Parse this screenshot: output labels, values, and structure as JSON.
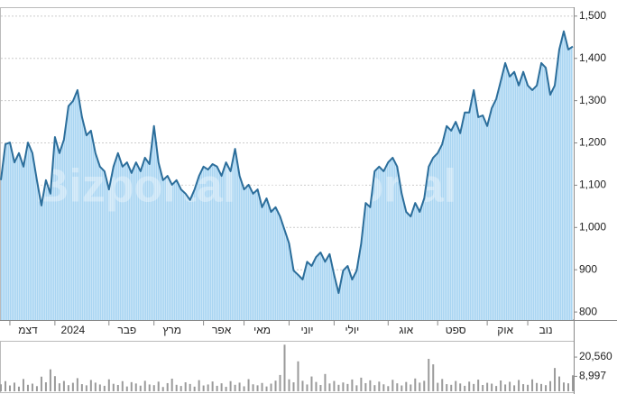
{
  "chart_data": {
    "type": "area",
    "watermark": "Bizportal",
    "line_color": "#2c6e9b",
    "fill_color": "#a9d5f2",
    "volume_color": "#9a9a9a",
    "grid": true,
    "categories": [
      null,
      null,
      null,
      null,
      null,
      null,
      "דצמ",
      null,
      null,
      null,
      null,
      null,
      null,
      null,
      null,
      null,
      "2024",
      null,
      null,
      null,
      null,
      null,
      null,
      null,
      null,
      null,
      null,
      null,
      "פבר",
      null,
      null,
      null,
      null,
      null,
      null,
      null,
      null,
      null,
      "מרץ",
      null,
      null,
      null,
      null,
      null,
      null,
      null,
      null,
      null,
      null,
      "אפר",
      null,
      null,
      null,
      null,
      null,
      null,
      null,
      null,
      "מאי",
      null,
      null,
      null,
      null,
      null,
      null,
      null,
      null,
      null,
      "יוני",
      null,
      null,
      null,
      null,
      null,
      null,
      null,
      null,
      null,
      "יולי",
      null,
      null,
      null,
      null,
      null,
      null,
      null,
      null,
      null,
      null,
      null,
      "אוג",
      null,
      null,
      null,
      null,
      null,
      null,
      null,
      null,
      null,
      null,
      "ספט",
      null,
      null,
      null,
      null,
      null,
      null,
      null,
      null,
      null,
      null,
      "אוק",
      null,
      null,
      null,
      null,
      null,
      null,
      null,
      null,
      "נוב",
      null,
      null,
      null,
      null,
      null,
      null
    ],
    "values": [
      1112,
      1197,
      1201,
      1154,
      1176,
      1144,
      1201,
      1176,
      1112,
      1052,
      1112,
      1080,
      1214,
      1176,
      1208,
      1287,
      1299,
      1325,
      1261,
      1218,
      1229,
      1176,
      1144,
      1133,
      1090,
      1144,
      1176,
      1144,
      1154,
      1129,
      1154,
      1133,
      1165,
      1150,
      1240,
      1154,
      1112,
      1122,
      1101,
      1112,
      1090,
      1080,
      1065,
      1090,
      1122,
      1144,
      1137,
      1150,
      1144,
      1122,
      1154,
      1133,
      1186,
      1122,
      1090,
      1101,
      1080,
      1090,
      1048,
      1069,
      1037,
      1048,
      1026,
      994,
      962,
      898,
      888,
      877,
      919,
      909,
      930,
      941,
      919,
      937,
      888,
      845,
      898,
      909,
      877,
      898,
      962,
      1058,
      1048,
      1133,
      1144,
      1133,
      1154,
      1165,
      1144,
      1080,
      1037,
      1026,
      1058,
      1037,
      1069,
      1144,
      1165,
      1176,
      1197,
      1240,
      1229,
      1250,
      1223,
      1272,
      1272,
      1325,
      1261,
      1265,
      1240,
      1282,
      1304,
      1346,
      1389,
      1357,
      1368,
      1336,
      1368,
      1336,
      1325,
      1336,
      1389,
      1378,
      1314,
      1336,
      1421,
      1464,
      1421,
      1428
    ],
    "ylim": [
      781,
      1521
    ],
    "yticks": [
      800,
      900,
      {
        "value": 1000,
        "label": "1,000"
      },
      {
        "value": 1100,
        "label": "1,100"
      },
      {
        "value": 1200,
        "label": "1,200"
      },
      {
        "value": 1300,
        "label": "1,300"
      },
      {
        "value": 1400,
        "label": "1,400"
      },
      {
        "value": 1500,
        "label": "1,500"
      }
    ],
    "volume": [
      4200,
      6100,
      3500,
      5200,
      2800,
      7400,
      3900,
      4600,
      3100,
      8800,
      5400,
      13200,
      9100,
      4800,
      6200,
      3700,
      5100,
      7900,
      4300,
      3600,
      6800,
      5200,
      4100,
      3300,
      7200,
      4500,
      3800,
      6100,
      2900,
      5500,
      4700,
      3400,
      6300,
      4100,
      3700,
      5800,
      2600,
      4900,
      7600,
      3900,
      3200,
      5400,
      4400,
      2800,
      6700,
      3500,
      4100,
      5900,
      3300,
      4800,
      2700,
      6100,
      3900,
      5200,
      3000,
      7300,
      4200,
      3600,
      5000,
      2900,
      4600,
      6400,
      9800,
      28000,
      7200,
      5400,
      18000,
      6300,
      4100,
      8900,
      5600,
      3800,
      10400,
      4700,
      6200,
      3900,
      5300,
      4400,
      7100,
      3600,
      8200,
      4900,
      6600,
      3700,
      5800,
      4200,
      3100,
      6900,
      4800,
      3500,
      5600,
      4100,
      7700,
      5200,
      6300,
      19500,
      16200,
      5100,
      7400,
      4300,
      3900,
      6200,
      4700,
      3300,
      5800,
      4400,
      7000,
      3800,
      5100,
      4600,
      3200,
      6500,
      4100,
      5700,
      3600,
      6800,
      4300,
      3900,
      7200,
      5000,
      4400,
      3700,
      6100,
      14000,
      8900,
      5300,
      4800,
      9600
    ],
    "vlim": [
      0,
      29800
    ],
    "vticks": [
      {
        "value": 8997,
        "label": "8,997"
      },
      {
        "value": 20560,
        "label": "20,560"
      }
    ]
  }
}
